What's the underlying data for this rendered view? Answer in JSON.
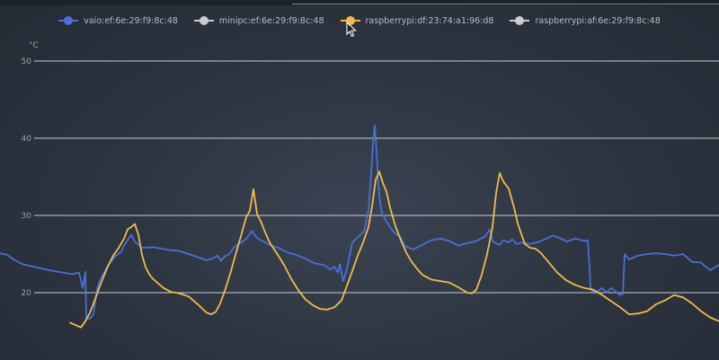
{
  "chart_data": {
    "type": "line",
    "ylabel": "°C",
    "ylim": [
      14,
      50
    ],
    "yticks": [
      20,
      30,
      40,
      50
    ],
    "grid": true,
    "legend_position": "top",
    "series": [
      {
        "name": "vaio:ef:6e:29:f9:8c:48",
        "color": "#4a6fd6",
        "x": [
          0,
          8,
          15,
          25,
          40,
          55,
          70,
          80,
          88,
          92,
          95,
          96,
          98,
          100,
          104,
          108,
          112,
          120,
          128,
          135,
          138,
          142,
          146,
          150,
          158,
          170,
          180,
          190,
          200,
          210,
          220,
          230,
          238,
          242,
          246,
          250,
          255,
          260,
          265,
          270,
          275,
          280,
          285,
          290,
          300,
          310,
          320,
          330,
          340,
          350,
          360,
          368,
          372,
          376,
          378,
          382,
          386,
          392,
          400,
          405,
          410,
          413,
          415,
          417,
          419,
          421,
          423,
          425,
          430,
          435,
          440,
          445,
          450,
          455,
          460,
          470,
          480,
          490,
          500,
          510,
          520,
          530,
          540,
          545,
          548,
          552,
          556,
          560,
          565,
          570,
          575,
          580,
          590,
          600,
          610,
          615,
          620,
          628,
          630,
          640,
          650,
          654,
          656,
          657,
          658,
          660,
          665,
          670,
          675,
          680,
          685,
          688,
          690,
          693,
          695,
          700,
          710,
          720,
          730,
          740,
          750,
          760,
          770,
          780,
          790,
          800
        ],
        "y": [
          25.1,
          24.9,
          24.3,
          23.7,
          23.3,
          22.9,
          22.6,
          22.4,
          22.6,
          20.6,
          22.7,
          16.6,
          16.7,
          16.6,
          17.2,
          20.5,
          21.8,
          23.5,
          24.7,
          25.3,
          26.1,
          26.8,
          27.5,
          26.6,
          25.8,
          25.9,
          25.7,
          25.5,
          25.4,
          25.0,
          24.6,
          24.2,
          24.5,
          24.8,
          24.1,
          24.7,
          25.0,
          25.8,
          26.3,
          26.6,
          27.1,
          28.0,
          27.2,
          26.8,
          26.2,
          25.8,
          25.2,
          24.9,
          24.4,
          23.8,
          23.6,
          23.0,
          23.4,
          22.6,
          23.7,
          21.5,
          23.1,
          26.5,
          27.4,
          27.9,
          30.7,
          35.5,
          39.3,
          41.7,
          38.3,
          33.9,
          31.6,
          30.3,
          29.2,
          28.3,
          27.6,
          27.3,
          26.1,
          25.8,
          25.6,
          26.2,
          26.8,
          27.0,
          26.7,
          26.1,
          26.4,
          26.7,
          27.3,
          28.2,
          26.7,
          26.4,
          26.2,
          26.8,
          26.5,
          26.9,
          26.3,
          26.5,
          26.3,
          26.6,
          27.1,
          27.4,
          27.2,
          26.8,
          26.6,
          27.0,
          26.7,
          26.8,
          23.3,
          20.7,
          20.3,
          20.1,
          20.2,
          20.6,
          20.0,
          20.6,
          20.2,
          19.8,
          19.7,
          19.8,
          25.0,
          24.3,
          24.8,
          25.0,
          25.1,
          25.0,
          24.8,
          25.0,
          24.0,
          23.9,
          22.9,
          23.6
        ]
      },
      {
        "name": "minipc:ef:6e:29:f9:8c:48",
        "color": "#c9ccd1",
        "x": [],
        "y": []
      },
      {
        "name": "raspberrypi:df:23:74:a1:96:d8",
        "color": "#f0bc48",
        "x": [
          78,
          84,
          90,
          95,
          100,
          105,
          110,
          115,
          120,
          126,
          132,
          138,
          142,
          146,
          150,
          154,
          158,
          162,
          166,
          170,
          176,
          182,
          190,
          200,
          210,
          220,
          230,
          235,
          240,
          245,
          250,
          256,
          262,
          268,
          274,
          278,
          282,
          284,
          286,
          288,
          290,
          294,
          300,
          308,
          316,
          324,
          332,
          340,
          348,
          356,
          364,
          372,
          380,
          386,
          392,
          398,
          404,
          410,
          414,
          418,
          422,
          426,
          430,
          434,
          440,
          446,
          452,
          458,
          464,
          470,
          480,
          490,
          500,
          510,
          520,
          525,
          530,
          536,
          542,
          548,
          552,
          556,
          560,
          566,
          572,
          576,
          580,
          584,
          590,
          596,
          602,
          610,
          620,
          630,
          640,
          650,
          660,
          670,
          680,
          690,
          700,
          710,
          720,
          730,
          740,
          750,
          760,
          770,
          780,
          790,
          800
        ],
        "y": [
          16.1,
          15.8,
          15.5,
          16.3,
          17.4,
          18.9,
          20.5,
          22.0,
          23.4,
          24.8,
          25.8,
          27.0,
          28.2,
          28.5,
          28.9,
          27.5,
          24.9,
          23.3,
          22.4,
          21.8,
          21.2,
          20.6,
          20.1,
          19.9,
          19.5,
          18.5,
          17.4,
          17.2,
          17.5,
          18.6,
          20.2,
          22.4,
          24.9,
          27.3,
          29.8,
          30.6,
          33.4,
          31.8,
          30.2,
          29.7,
          29.3,
          28.1,
          26.5,
          25.1,
          23.6,
          21.8,
          20.3,
          19.1,
          18.4,
          17.9,
          17.8,
          18.1,
          19.0,
          20.9,
          22.8,
          24.8,
          26.5,
          28.5,
          31.2,
          34.6,
          35.7,
          34.2,
          33.1,
          31.0,
          28.6,
          26.8,
          25.2,
          24.0,
          23.1,
          22.3,
          21.7,
          21.5,
          21.3,
          20.7,
          20.0,
          19.9,
          20.4,
          22.3,
          25.0,
          28.5,
          32.9,
          35.5,
          34.4,
          33.5,
          31.0,
          29.0,
          27.6,
          26.3,
          25.8,
          25.7,
          25.1,
          24.0,
          22.6,
          21.6,
          21.0,
          20.6,
          20.4,
          19.7,
          18.9,
          18.1,
          17.2,
          17.3,
          17.6,
          18.5,
          19.0,
          19.7,
          19.4,
          18.6,
          17.6,
          16.8,
          16.3
        ]
      },
      {
        "name": "raspberrypi:af:6e:29:f9:8c:48",
        "color": "#c9ccd1",
        "x": [],
        "y": []
      }
    ]
  }
}
